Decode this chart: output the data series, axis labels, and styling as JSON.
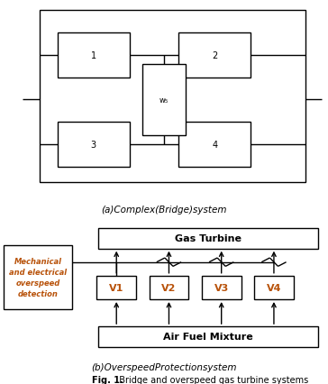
{
  "title_a": "(a)Complex(Bridge)system",
  "title_b": "(b)OverspeedProtectionsystem",
  "fig_caption_bold": "Fig. 1.",
  "fig_caption_rest": "  Bridge and overspeed gas turbine systems",
  "box1_label": "1",
  "box2_label": "2",
  "box3_label": "3",
  "box4_label": "4",
  "box5_label": "w₅",
  "v1_label": "V1",
  "v2_label": "V2",
  "v3_label": "V3",
  "v4_label": "V4",
  "gas_turbine_label": "Gas Turbine",
  "air_fuel_label": "Air Fuel Mixture",
  "mech_line1": "Mechanical",
  "mech_line2": "and electrical",
  "mech_line3": "overspeed",
  "mech_line4": "detection",
  "bg_color": "#ffffff",
  "text_color_orange": "#b8520a",
  "text_color_normal": "#000000",
  "lw": 1.0
}
